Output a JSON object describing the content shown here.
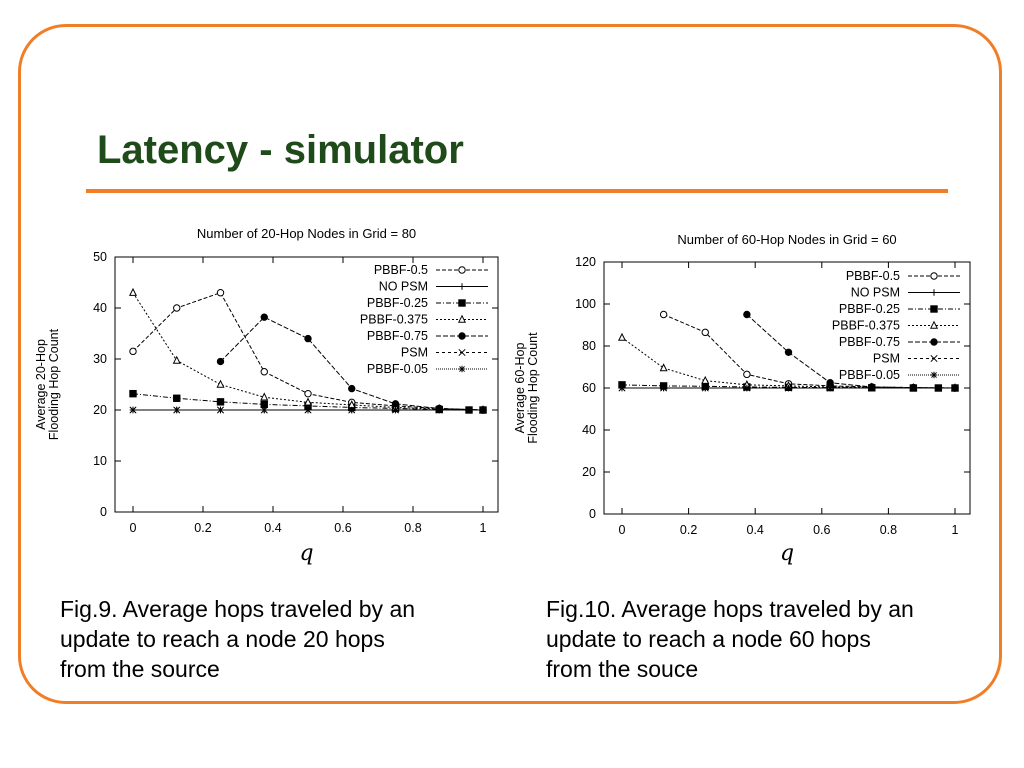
{
  "slide": {
    "title": "Latency - simulator",
    "accent_color": "#f07e26",
    "title_color": "#1f4a1a"
  },
  "captions": [
    [
      "Fig.9. Average hops traveled by an",
      "update to reach a node 20 hops",
      "from the source"
    ],
    [
      "Fig.10. Average hops traveled by an",
      "update to reach a node 60 hops",
      "from the souce"
    ]
  ],
  "chart_data": [
    {
      "type": "line",
      "title": "Number of 20-Hop Nodes in Grid = 80",
      "xlabel": "q",
      "ylabel": [
        "Average 20-Hop",
        "Flooding Hop Count"
      ],
      "xlim": [
        0,
        1
      ],
      "ylim": [
        0,
        50
      ],
      "xticks": [
        0,
        0.2,
        0.4,
        0.6,
        0.8,
        1
      ],
      "xtick_labels": [
        "0",
        "0.2",
        "0.4",
        "0.6",
        "0.8",
        "1"
      ],
      "yticks": [
        0,
        10,
        20,
        30,
        40,
        50
      ],
      "ytick_labels": [
        "0",
        "10",
        "20",
        "30",
        "40",
        "50"
      ],
      "legend": "top-right",
      "grid": false,
      "series": [
        {
          "name": "PBBF-0.5",
          "marker": "open-circle",
          "dash": "4,2",
          "x": [
            0,
            0.125,
            0.25,
            0.375,
            0.5,
            0.625,
            0.75,
            0.875,
            1
          ],
          "y": [
            31.5,
            40,
            43,
            27.5,
            23.2,
            21.5,
            20.8,
            20.3,
            20
          ]
        },
        {
          "name": "NO PSM",
          "marker": "plus",
          "dash": "",
          "x": [
            0,
            0.125,
            0.25,
            0.375,
            0.5,
            0.625,
            0.75,
            0.875,
            1
          ],
          "y": [
            20,
            20,
            20,
            20,
            20,
            20,
            20,
            20,
            20
          ]
        },
        {
          "name": "PBBF-0.25",
          "marker": "filled-square",
          "dash": "5,2,1,2",
          "x": [
            0,
            0.125,
            0.25,
            0.375,
            0.5,
            0.625,
            0.75,
            0.875,
            0.96,
            1
          ],
          "y": [
            23.2,
            22.3,
            21.6,
            21.1,
            20.8,
            20.5,
            20.3,
            20.1,
            20,
            20
          ]
        },
        {
          "name": "PBBF-0.375",
          "marker": "open-triangle",
          "dash": "2,2",
          "x": [
            0,
            0.125,
            0.25,
            0.375,
            0.5,
            0.625,
            0.75,
            0.875,
            1
          ],
          "y": [
            43,
            29.7,
            25,
            22.5,
            21.5,
            21,
            20.5,
            20.2,
            20
          ]
        },
        {
          "name": "PBBF-0.75",
          "marker": "filled-circle",
          "dash": "5,2",
          "x": [
            0.25,
            0.375,
            0.5,
            0.625,
            0.75,
            0.875,
            1
          ],
          "y": [
            29.5,
            38.2,
            34,
            24.2,
            21.2,
            20.3,
            20
          ]
        },
        {
          "name": "PSM",
          "marker": "x",
          "dash": "3,3",
          "x": [
            0,
            0.125,
            0.25,
            0.375,
            0.5,
            0.625,
            0.75,
            0.875,
            1
          ],
          "y": [
            20,
            20,
            20,
            20,
            20,
            20,
            20,
            20,
            20
          ]
        },
        {
          "name": "PBBF-0.05",
          "marker": "star",
          "dash": "1,1",
          "x": [
            0,
            0.125,
            0.25,
            0.375,
            0.5,
            0.625,
            0.75,
            0.875,
            1
          ],
          "y": [
            20,
            20,
            20,
            20,
            20,
            20,
            20,
            20,
            20
          ]
        }
      ]
    },
    {
      "type": "line",
      "title": "Number of 60-Hop Nodes in Grid = 60",
      "xlabel": "q",
      "ylabel": [
        "Average 60-Hop",
        "Flooding Hop Count"
      ],
      "xlim": [
        0,
        1
      ],
      "ylim": [
        0,
        120
      ],
      "xticks": [
        0,
        0.2,
        0.4,
        0.6,
        0.8,
        1
      ],
      "xtick_labels": [
        "0",
        "0.2",
        "0.4",
        "0.6",
        "0.8",
        "1"
      ],
      "yticks": [
        0,
        20,
        40,
        60,
        80,
        100,
        120
      ],
      "ytick_labels": [
        "0",
        "20",
        "40",
        "60",
        "80",
        "100",
        "120"
      ],
      "legend": "top-right",
      "grid": false,
      "series": [
        {
          "name": "PBBF-0.5",
          "marker": "open-circle",
          "dash": "4,2",
          "x": [
            0.125,
            0.25,
            0.375,
            0.5,
            0.625,
            0.75,
            0.875,
            1
          ],
          "y": [
            95,
            86.5,
            66.5,
            62,
            61,
            60.5,
            60.2,
            60
          ]
        },
        {
          "name": "NO PSM",
          "marker": "plus",
          "dash": "",
          "x": [
            0,
            0.125,
            0.25,
            0.375,
            0.5,
            0.625,
            0.75,
            0.875,
            1
          ],
          "y": [
            60,
            60,
            60,
            60,
            60,
            60,
            60,
            60,
            60
          ]
        },
        {
          "name": "PBBF-0.25",
          "marker": "filled-square",
          "dash": "5,2,1,2",
          "x": [
            0,
            0.125,
            0.25,
            0.375,
            0.5,
            0.625,
            0.75,
            0.875,
            0.95,
            1
          ],
          "y": [
            61.5,
            61,
            60.8,
            60.5,
            60.3,
            60.2,
            60.1,
            60,
            60,
            60
          ]
        },
        {
          "name": "PBBF-0.375",
          "marker": "open-triangle",
          "dash": "2,2",
          "x": [
            0,
            0.125,
            0.25,
            0.375,
            0.5,
            0.625,
            0.75,
            0.875,
            1
          ],
          "y": [
            84,
            69.5,
            63.5,
            61.5,
            61,
            60.5,
            60.3,
            60.1,
            60
          ]
        },
        {
          "name": "PBBF-0.75",
          "marker": "filled-circle",
          "dash": "5,2",
          "x": [
            0.375,
            0.5,
            0.625,
            0.75,
            0.875,
            1
          ],
          "y": [
            95,
            77,
            62.5,
            60.5,
            60.2,
            60
          ]
        },
        {
          "name": "PSM",
          "marker": "x",
          "dash": "3,3",
          "x": [
            0,
            0.125,
            0.25,
            0.375,
            0.5,
            0.625,
            0.75,
            0.875,
            1
          ],
          "y": [
            60,
            60,
            60,
            60,
            60,
            60,
            60,
            60,
            60
          ]
        },
        {
          "name": "PBBF-0.05",
          "marker": "star",
          "dash": "1,1",
          "x": [
            0,
            0.125,
            0.25,
            0.375,
            0.5,
            0.625,
            0.75,
            0.875,
            1
          ],
          "y": [
            60,
            60,
            60,
            60,
            60,
            60,
            60,
            60,
            60
          ]
        }
      ]
    }
  ]
}
